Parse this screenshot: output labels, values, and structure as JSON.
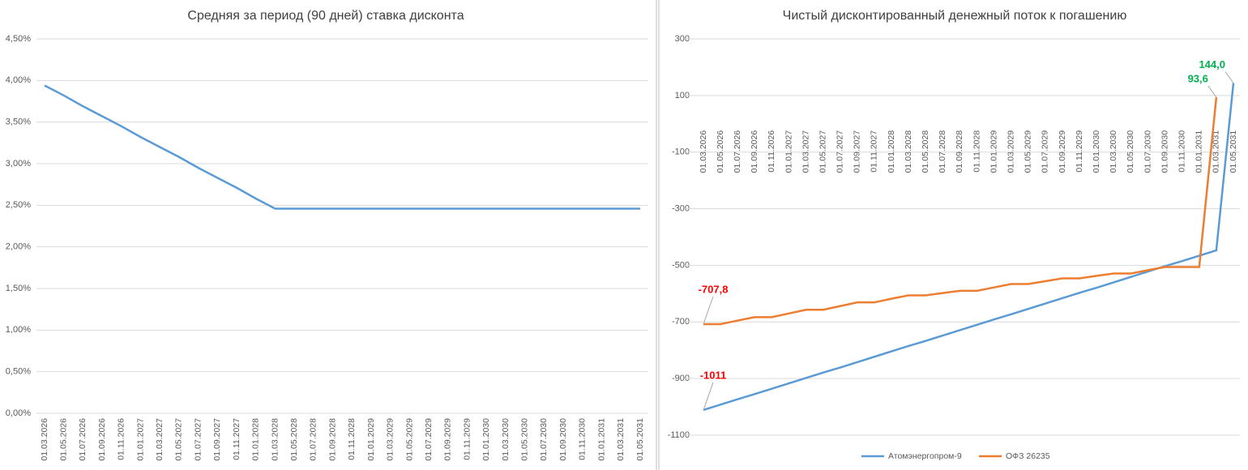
{
  "chart_data": [
    {
      "type": "line",
      "title": "Средняя за период (90 дней) ставка дисконта",
      "categories": [
        "01.03.2026",
        "01.05.2026",
        "01.07.2026",
        "01.09.2026",
        "01.11.2026",
        "01.01.2027",
        "01.03.2027",
        "01.05.2027",
        "01.07.2027",
        "01.09.2027",
        "01.11.2027",
        "01.01.2028",
        "01.03.2028",
        "01.05.2028",
        "01.07.2028",
        "01.09.2028",
        "01.11.2028",
        "01.01.2029",
        "01.03.2029",
        "01.05.2029",
        "01.07.2029",
        "01.09.2029",
        "01.11.2029",
        "01.01.2030",
        "01.03.2030",
        "01.05.2030",
        "01.07.2030",
        "01.09.2030",
        "01.11.2030",
        "01.01.2031",
        "01.03.2031",
        "01.05.2031"
      ],
      "series": [
        {
          "color": "#5b9bd5",
          "values": [
            3.94,
            3.82,
            3.69,
            3.57,
            3.45,
            3.32,
            3.2,
            3.08,
            2.95,
            2.83,
            2.71,
            2.58,
            2.46,
            2.46,
            2.46,
            2.46,
            2.46,
            2.46,
            2.46,
            2.46,
            2.46,
            2.46,
            2.46,
            2.46,
            2.46,
            2.46,
            2.46,
            2.46,
            2.46,
            2.46,
            2.46,
            2.46
          ]
        }
      ],
      "ylim": [
        0,
        4.5
      ],
      "yticks": [
        {
          "value": 0,
          "label": "0,00%"
        },
        {
          "value": 0.5,
          "label": "0,50%"
        },
        {
          "value": 1,
          "label": "1,00%"
        },
        {
          "value": 1.5,
          "label": "1,50%"
        },
        {
          "value": 2,
          "label": "2,00%"
        },
        {
          "value": 2.5,
          "label": "2,50%"
        },
        {
          "value": 3,
          "label": "3,00%"
        },
        {
          "value": 3.5,
          "label": "3,50%"
        },
        {
          "value": 4,
          "label": "4,00%"
        },
        {
          "value": 4.5,
          "label": "4,50%"
        }
      ],
      "grid": true
    },
    {
      "type": "line",
      "title": "Чистый дисконтированный денежный поток к погашению",
      "categories": [
        "01.03.2026",
        "01.05.2026",
        "01.07.2026",
        "01.09.2026",
        "01.11.2026",
        "01.01.2027",
        "01.03.2027",
        "01.05.2027",
        "01.07.2027",
        "01.09.2027",
        "01.11.2027",
        "01.01.2028",
        "01.03.2028",
        "01.05.2028",
        "01.07.2028",
        "01.09.2028",
        "01.11.2028",
        "01.01.2029",
        "01.03.2029",
        "01.05.2029",
        "01.07.2029",
        "01.09.2029",
        "01.11.2029",
        "01.01.2030",
        "01.03.2030",
        "01.05.2030",
        "01.07.2030",
        "01.09.2030",
        "01.11.2030",
        "01.01.2031",
        "01.03.2031",
        "01.05.2031"
      ],
      "series": [
        {
          "name": "Атомэнергопром-9",
          "color": "#5b9bd5",
          "values": [
            -1011,
            -992,
            -973,
            -955,
            -936,
            -917,
            -898,
            -879,
            -861,
            -842,
            -823,
            -804,
            -785,
            -767,
            -748,
            -729,
            -710,
            -691,
            -673,
            -654,
            -635,
            -616,
            -597,
            -579,
            -560,
            -541,
            -522,
            -503,
            -485,
            -466,
            -447,
            144
          ],
          "value_labels": [
            "-1011",
            null,
            null,
            null,
            null,
            null,
            null,
            null,
            null,
            null,
            null,
            null,
            null,
            null,
            null,
            null,
            null,
            null,
            null,
            null,
            null,
            null,
            null,
            null,
            null,
            null,
            null,
            null,
            null,
            null,
            null,
            "144,0"
          ]
        },
        {
          "name": "ОФЗ 26235",
          "color": "#ed7d31",
          "values": [
            -707.8,
            -707.8,
            -695,
            -683,
            -683,
            -670,
            -657,
            -657,
            -644,
            -631,
            -631,
            -618,
            -606,
            -606,
            -598,
            -590,
            -590,
            -578,
            -566,
            -566,
            -556,
            -546,
            -546,
            -537,
            -529,
            -529,
            -517,
            -506,
            -506,
            -506,
            93.6,
            null
          ],
          "value_labels": [
            "-707,8",
            null,
            null,
            null,
            null,
            null,
            null,
            null,
            null,
            null,
            null,
            null,
            null,
            null,
            null,
            null,
            null,
            null,
            null,
            null,
            null,
            null,
            null,
            null,
            null,
            null,
            null,
            null,
            null,
            null,
            "93,6",
            null
          ]
        }
      ],
      "ylim": [
        -1100,
        300
      ],
      "yticks": [
        -1100,
        -900,
        -700,
        -500,
        -300,
        -100,
        100,
        300
      ],
      "grid": true,
      "legend": "bottom"
    }
  ]
}
